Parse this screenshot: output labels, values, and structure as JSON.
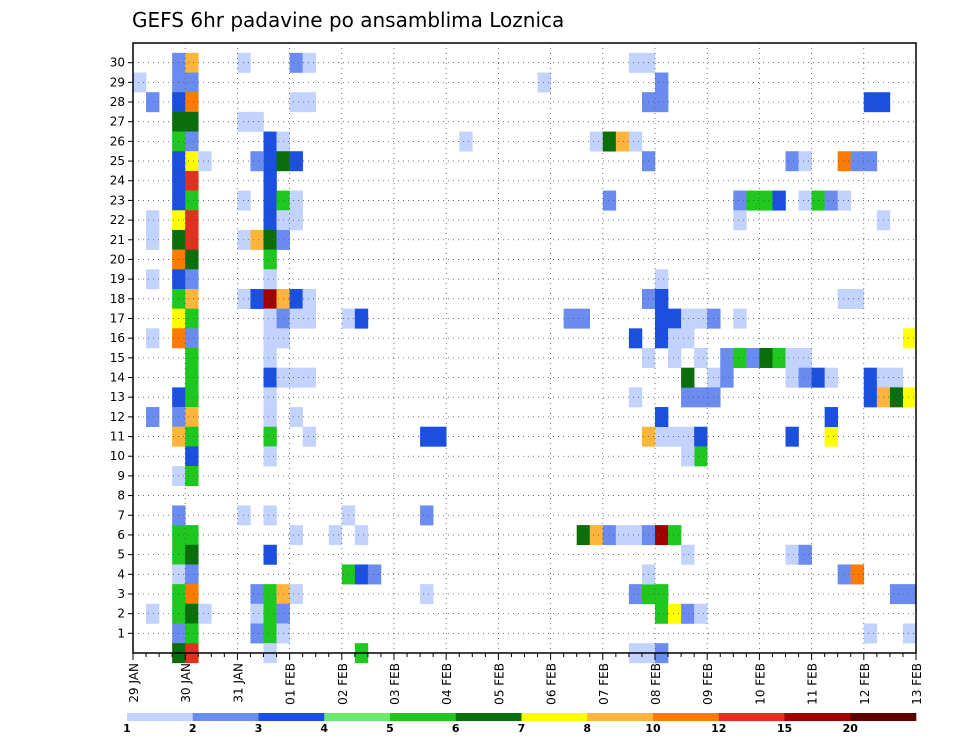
{
  "chart_data": {
    "type": "heatmap",
    "title": "GEFS 6hr padavine po ansamblima Loznica",
    "xlabel": "",
    "ylabel": "",
    "x_ticks": [
      "29 JAN",
      "30 JAN",
      "31 JAN",
      "01 FEB",
      "02 FEB",
      "03 FEB",
      "04 FEB",
      "05 FEB",
      "06 FEB",
      "07 FEB",
      "08 FEB",
      "09 FEB",
      "10 FEB",
      "11 FEB",
      "12 FEB",
      "13 FEB"
    ],
    "y_ticks": [
      "1",
      "2",
      "3",
      "4",
      "5",
      "6",
      "7",
      "8",
      "9",
      "10",
      "11",
      "12",
      "13",
      "14",
      "15",
      "16",
      "17",
      "18",
      "19",
      "20",
      "21",
      "22",
      "23",
      "24",
      "25",
      "26",
      "27",
      "28",
      "29",
      "30"
    ],
    "xlim": [
      0,
      60
    ],
    "ylim": [
      0,
      30
    ],
    "grid": true,
    "legend": {
      "placement": "bottom",
      "labels": [
        "1",
        "2",
        "3",
        "4",
        "5",
        "6",
        "7",
        "8",
        "10",
        "12",
        "15",
        "20"
      ],
      "colors": [
        "#c3d3ff",
        "#6a8cf0",
        "#1a4fe0",
        "#6ee86e",
        "#1ec81e",
        "#0a6e0a",
        "#ffff00",
        "#ffb43c",
        "#ff7a00",
        "#e03020",
        "#a00000",
        "#600000"
      ]
    },
    "cells_note": "each cell: [x_step(6h), member(row), color index into legend.colors]",
    "cells": [
      [
        0,
        29,
        0
      ],
      [
        1,
        28,
        1
      ],
      [
        3,
        30,
        1
      ],
      [
        4,
        30,
        7
      ],
      [
        3,
        29,
        1
      ],
      [
        4,
        29,
        1
      ],
      [
        3,
        28,
        2
      ],
      [
        4,
        28,
        8
      ],
      [
        3,
        27,
        5
      ],
      [
        4,
        27,
        5
      ],
      [
        3,
        26,
        4
      ],
      [
        4,
        26,
        1
      ],
      [
        3,
        25,
        2
      ],
      [
        4,
        25,
        6
      ],
      [
        5,
        25,
        0
      ],
      [
        3,
        24,
        2
      ],
      [
        4,
        24,
        9
      ],
      [
        3,
        23,
        2
      ],
      [
        4,
        23,
        4
      ],
      [
        3,
        22,
        6
      ],
      [
        4,
        22,
        9
      ],
      [
        3,
        21,
        5
      ],
      [
        4,
        21,
        9
      ],
      [
        3,
        20,
        8
      ],
      [
        4,
        20,
        5
      ],
      [
        3,
        19,
        2
      ],
      [
        4,
        19,
        1
      ],
      [
        3,
        18,
        4
      ],
      [
        4,
        18,
        7
      ],
      [
        3,
        17,
        6
      ],
      [
        4,
        17,
        4
      ],
      [
        3,
        16,
        8
      ],
      [
        4,
        16,
        1
      ],
      [
        4,
        15,
        4
      ],
      [
        4,
        14,
        4
      ],
      [
        3,
        13,
        2
      ],
      [
        4,
        13,
        4
      ],
      [
        3,
        12,
        1
      ],
      [
        4,
        12,
        7
      ],
      [
        3,
        11,
        7
      ],
      [
        4,
        11,
        4
      ],
      [
        4,
        10,
        2
      ],
      [
        3,
        9,
        0
      ],
      [
        4,
        9,
        4
      ],
      [
        3,
        7,
        1
      ],
      [
        3,
        6,
        4
      ],
      [
        4,
        6,
        4
      ],
      [
        3,
        5,
        4
      ],
      [
        4,
        5,
        5
      ],
      [
        3,
        4,
        0
      ],
      [
        4,
        4,
        1
      ],
      [
        3,
        3,
        4
      ],
      [
        4,
        3,
        8
      ],
      [
        3,
        2,
        4
      ],
      [
        4,
        2,
        5
      ],
      [
        5,
        2,
        0
      ],
      [
        3,
        1,
        1
      ],
      [
        4,
        1,
        4
      ],
      [
        3,
        0,
        5
      ],
      [
        4,
        0,
        9
      ],
      [
        1,
        22,
        0
      ],
      [
        1,
        21,
        0
      ],
      [
        1,
        19,
        0
      ],
      [
        1,
        16,
        0
      ],
      [
        1,
        12,
        1
      ],
      [
        1,
        2,
        0
      ],
      [
        8,
        30,
        0
      ],
      [
        8,
        27,
        0
      ],
      [
        9,
        27,
        0
      ],
      [
        8,
        23,
        0
      ],
      [
        8,
        21,
        0
      ],
      [
        9,
        21,
        7
      ],
      [
        8,
        18,
        0
      ],
      [
        9,
        18,
        2
      ],
      [
        10,
        18,
        10
      ],
      [
        11,
        18,
        7
      ],
      [
        12,
        18,
        2
      ],
      [
        13,
        18,
        0
      ],
      [
        10,
        17,
        0
      ],
      [
        11,
        17,
        1
      ],
      [
        12,
        17,
        0
      ],
      [
        13,
        17,
        0
      ],
      [
        10,
        16,
        0
      ],
      [
        11,
        16,
        0
      ],
      [
        10,
        26,
        2
      ],
      [
        11,
        26,
        0
      ],
      [
        10,
        25,
        2
      ],
      [
        11,
        25,
        5
      ],
      [
        12,
        25,
        2
      ],
      [
        9,
        25,
        1
      ],
      [
        10,
        24,
        2
      ],
      [
        10,
        23,
        2
      ],
      [
        11,
        23,
        4
      ],
      [
        12,
        23,
        0
      ],
      [
        10,
        22,
        2
      ],
      [
        11,
        22,
        0
      ],
      [
        12,
        22,
        0
      ],
      [
        10,
        21,
        5
      ],
      [
        11,
        21,
        1
      ],
      [
        10,
        20,
        4
      ],
      [
        10,
        19,
        0
      ],
      [
        10,
        15,
        0
      ],
      [
        10,
        14,
        2
      ],
      [
        11,
        14,
        0
      ],
      [
        12,
        14,
        0
      ],
      [
        13,
        14,
        0
      ],
      [
        10,
        13,
        0
      ],
      [
        10,
        12,
        0
      ],
      [
        12,
        12,
        0
      ],
      [
        10,
        11,
        4
      ],
      [
        13,
        11,
        0
      ],
      [
        10,
        10,
        0
      ],
      [
        8,
        7,
        0
      ],
      [
        10,
        7,
        0
      ],
      [
        12,
        6,
        0
      ],
      [
        10,
        5,
        2
      ],
      [
        9,
        3,
        1
      ],
      [
        10,
        3,
        4
      ],
      [
        11,
        3,
        7
      ],
      [
        12,
        3,
        0
      ],
      [
        9,
        2,
        0
      ],
      [
        10,
        2,
        4
      ],
      [
        11,
        2,
        1
      ],
      [
        9,
        1,
        1
      ],
      [
        10,
        1,
        4
      ],
      [
        11,
        1,
        0
      ],
      [
        10,
        0,
        0
      ],
      [
        12,
        30,
        1
      ],
      [
        13,
        30,
        0
      ],
      [
        12,
        28,
        0
      ],
      [
        13,
        28,
        0
      ],
      [
        15,
        6,
        0
      ],
      [
        16,
        7,
        0
      ],
      [
        17,
        6,
        0
      ],
      [
        16,
        4,
        4
      ],
      [
        17,
        4,
        2
      ],
      [
        18,
        4,
        1
      ],
      [
        17,
        0,
        4
      ],
      [
        16,
        17,
        0
      ],
      [
        17,
        17,
        2
      ],
      [
        22,
        11,
        2
      ],
      [
        23,
        11,
        2
      ],
      [
        22,
        7,
        1
      ],
      [
        22,
        3,
        0
      ],
      [
        25,
        26,
        0
      ],
      [
        31,
        29,
        0
      ],
      [
        33,
        17,
        1
      ],
      [
        34,
        17,
        1
      ],
      [
        34,
        6,
        5
      ],
      [
        35,
        6,
        7
      ],
      [
        36,
        6,
        1
      ],
      [
        37,
        6,
        0
      ],
      [
        38,
        6,
        0
      ],
      [
        39,
        6,
        1
      ],
      [
        40,
        6,
        10
      ],
      [
        41,
        6,
        4
      ],
      [
        35,
        26,
        0
      ],
      [
        36,
        26,
        5
      ],
      [
        37,
        26,
        7
      ],
      [
        38,
        26,
        0
      ],
      [
        36,
        23,
        1
      ],
      [
        38,
        30,
        0
      ],
      [
        39,
        30,
        0
      ],
      [
        40,
        29,
        1
      ],
      [
        39,
        28,
        1
      ],
      [
        40,
        28,
        1
      ],
      [
        39,
        25,
        1
      ],
      [
        40,
        19,
        0
      ],
      [
        39,
        18,
        1
      ],
      [
        40,
        18,
        2
      ],
      [
        40,
        17,
        2
      ],
      [
        41,
        17,
        2
      ],
      [
        40,
        16,
        2
      ],
      [
        41,
        16,
        0
      ],
      [
        38,
        16,
        2
      ],
      [
        39,
        15,
        0
      ],
      [
        41,
        15,
        0
      ],
      [
        38,
        13,
        0
      ],
      [
        39,
        11,
        7
      ],
      [
        40,
        11,
        0
      ],
      [
        41,
        11,
        0
      ],
      [
        42,
        11,
        0
      ],
      [
        40,
        12,
        2
      ],
      [
        38,
        3,
        1
      ],
      [
        39,
        3,
        4
      ],
      [
        40,
        3,
        4
      ],
      [
        40,
        2,
        4
      ],
      [
        41,
        2,
        6
      ],
      [
        42,
        2,
        1
      ],
      [
        43,
        2,
        0
      ],
      [
        39,
        4,
        0
      ],
      [
        42,
        5,
        0
      ],
      [
        38,
        0,
        0
      ],
      [
        39,
        0,
        0
      ],
      [
        40,
        0,
        1
      ],
      [
        42,
        17,
        0
      ],
      [
        43,
        17,
        0
      ],
      [
        44,
        17,
        1
      ],
      [
        46,
        17,
        0
      ],
      [
        42,
        16,
        0
      ],
      [
        43,
        15,
        0
      ],
      [
        44,
        14,
        0
      ],
      [
        45,
        14,
        1
      ],
      [
        42,
        13,
        1
      ],
      [
        43,
        13,
        1
      ],
      [
        44,
        13,
        1
      ],
      [
        43,
        11,
        2
      ],
      [
        43,
        10,
        4
      ],
      [
        42,
        10,
        0
      ],
      [
        42,
        14,
        5
      ],
      [
        45,
        15,
        1
      ],
      [
        46,
        15,
        4
      ],
      [
        47,
        15,
        1
      ],
      [
        48,
        15,
        5
      ],
      [
        49,
        15,
        4
      ],
      [
        50,
        15,
        0
      ],
      [
        51,
        15,
        0
      ],
      [
        50,
        14,
        0
      ],
      [
        51,
        14,
        1
      ],
      [
        52,
        14,
        2
      ],
      [
        53,
        14,
        0
      ],
      [
        46,
        23,
        1
      ],
      [
        47,
        23,
        4
      ],
      [
        48,
        23,
        4
      ],
      [
        49,
        23,
        2
      ],
      [
        46,
        22,
        0
      ],
      [
        51,
        23,
        0
      ],
      [
        52,
        23,
        4
      ],
      [
        53,
        23,
        1
      ],
      [
        54,
        23,
        0
      ],
      [
        50,
        25,
        1
      ],
      [
        51,
        25,
        0
      ],
      [
        54,
        25,
        8
      ],
      [
        55,
        25,
        1
      ],
      [
        56,
        25,
        1
      ],
      [
        50,
        11,
        2
      ],
      [
        53,
        11,
        6
      ],
      [
        53,
        12,
        2
      ],
      [
        50,
        5,
        0
      ],
      [
        51,
        5,
        1
      ],
      [
        54,
        4,
        1
      ],
      [
        55,
        4,
        8
      ],
      [
        56,
        1,
        0
      ],
      [
        59,
        1,
        0
      ],
      [
        54,
        18,
        0
      ],
      [
        55,
        18,
        0
      ],
      [
        57,
        22,
        0
      ],
      [
        56,
        28,
        2
      ],
      [
        57,
        28,
        2
      ],
      [
        56,
        14,
        2
      ],
      [
        57,
        14,
        0
      ],
      [
        58,
        14,
        0
      ],
      [
        56,
        13,
        2
      ],
      [
        57,
        13,
        7
      ],
      [
        58,
        13,
        5
      ],
      [
        59,
        13,
        6
      ],
      [
        59,
        16,
        6
      ],
      [
        58,
        3,
        1
      ],
      [
        59,
        3,
        1
      ]
    ]
  }
}
